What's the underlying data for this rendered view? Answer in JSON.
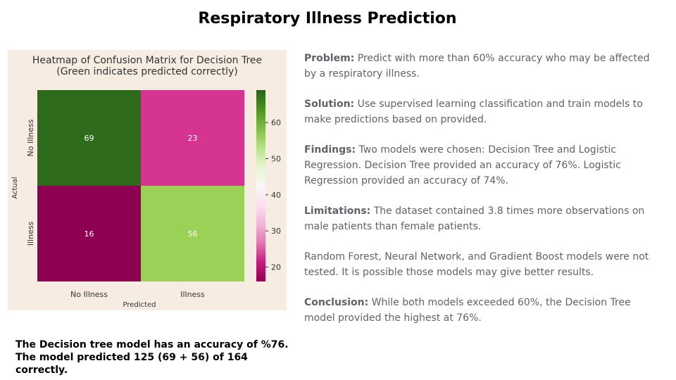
{
  "slide_title": "Respiratory Illness Prediction",
  "summary_text": "The Decision tree model has an accuracy of %76.  The model predicted 125 (69 + 56) of 164 correctly.",
  "notes": {
    "problem_label": "Problem:",
    "problem_text": "  Predict with more than 60% accuracy who may be affected by a respiratory illness.",
    "solution_label": "Solution:",
    "solution_text": " Use supervised learning classification and train models to make predictions based on provided.",
    "findings_label": "Findings:",
    "findings_text": " Two models were chosen:  Decision Tree and Logistic Regression.  Decision Tree provided an accuracy of 76%. Logistic Regression provided an accuracy of 74%.",
    "limitations_label": "Limitations:",
    "limitations_text": "  The dataset contained 3.8 times more observations on male patients than female patients.",
    "models_text": "Random Forest, Neural Network, and Gradient Boost models were not tested.  It is possible those models may give better results.",
    "conclusion_label": "Conclusion:",
    "conclusion_text": "  While both models exceeded 60%, the Decision Tree model provided the highest at 76%."
  },
  "chart_data": {
    "type": "heatmap",
    "title": "Heatmap of Confusion Matrix for Decision Tree",
    "subtitle": "(Green indicates predicted correctly)",
    "xlabel": "Predicted",
    "ylabel": "Actual",
    "x_categories": [
      "No Illness",
      "Illness"
    ],
    "y_categories": [
      "No Illness",
      "Illness"
    ],
    "cells": [
      {
        "row": 0,
        "col": 0,
        "value": 69,
        "label": "69",
        "color": "#2e6b1d"
      },
      {
        "row": 0,
        "col": 1,
        "value": 23,
        "label": "23",
        "color": "#d53590"
      },
      {
        "row": 1,
        "col": 0,
        "value": 16,
        "label": "16",
        "color": "#8e0152"
      },
      {
        "row": 1,
        "col": 1,
        "value": 56,
        "label": "56",
        "color": "#9cd158"
      }
    ],
    "colorbar": {
      "min": 16,
      "max": 69,
      "ticks": [
        60,
        50,
        40,
        30,
        20
      ],
      "colormap": "PiYG",
      "stops": [
        "#8e0152",
        "#c51b7d",
        "#de77ae",
        "#f1b6da",
        "#fde0ef",
        "#f7f7f7",
        "#e6f5d0",
        "#b8e186",
        "#7fbc41",
        "#4d9221",
        "#276419"
      ]
    }
  }
}
